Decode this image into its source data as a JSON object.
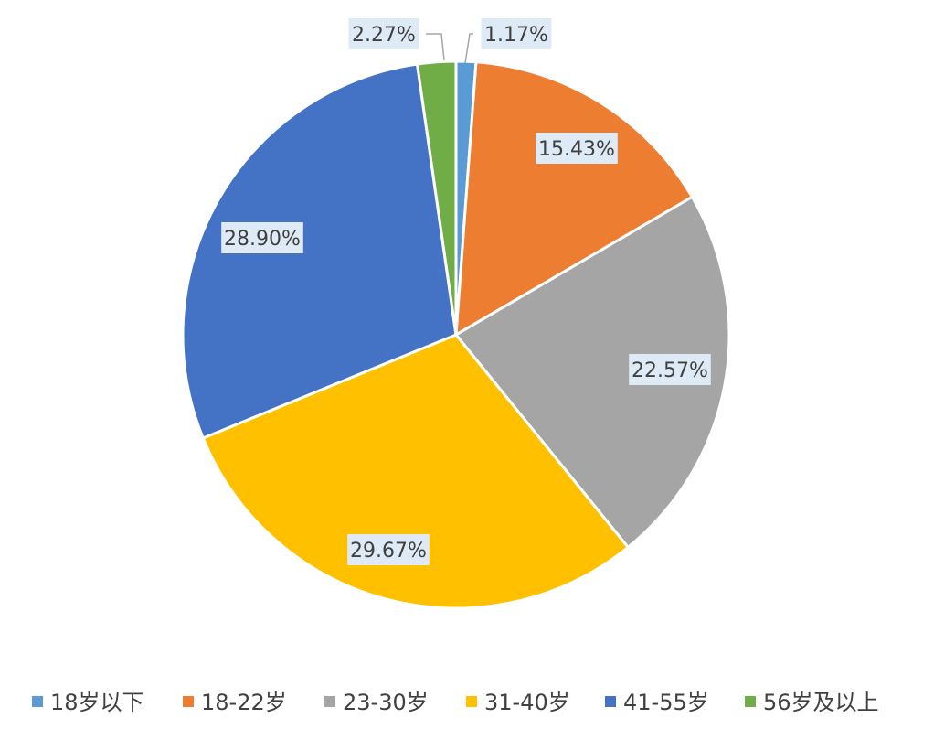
{
  "chart_data": {
    "type": "pie",
    "title": "",
    "categories": [
      "18岁以下",
      "18-22岁",
      "23-30岁",
      "31-40岁",
      "41-55岁",
      "56岁及以上"
    ],
    "values": [
      1.17,
      15.43,
      22.57,
      29.67,
      28.9,
      2.27
    ],
    "labels": [
      "1.17%",
      "15.43%",
      "22.57%",
      "29.67%",
      "28.90%",
      "2.27%"
    ],
    "unit": "%",
    "start_angle": "12 o'clock, clockwise",
    "legend_position": "bottom",
    "colors": [
      "#5B9BD5",
      "#ED7D31",
      "#A5A5A5",
      "#FFC000",
      "#4472C4",
      "#70AD47"
    ],
    "label_background": "#DEEBF7",
    "slice_border": "#ffffff",
    "text_color": "#404040"
  }
}
